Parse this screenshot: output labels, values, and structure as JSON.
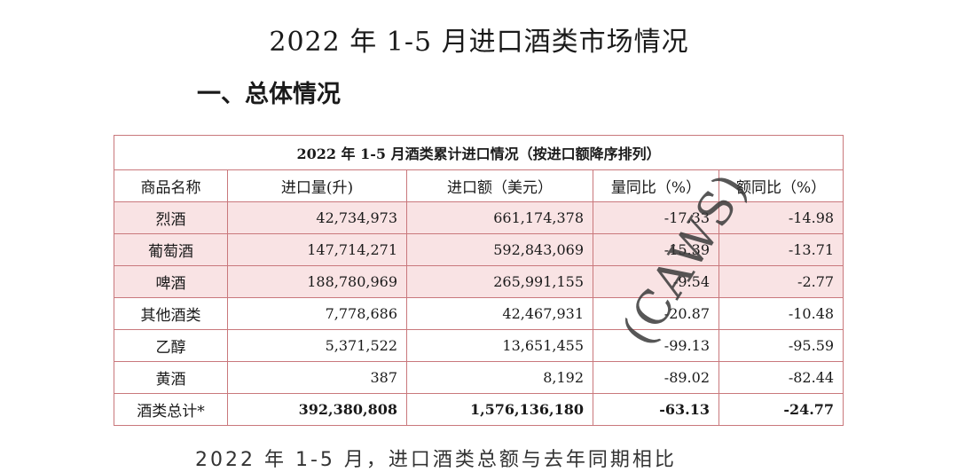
{
  "title": "2022 年 1-5 月进口酒类市场情况",
  "section": "一、总体情况",
  "table": {
    "caption": "2022 年 1-5 月酒类累计进口情况（按进口额降序排列）",
    "headers": [
      "商品名称",
      "进口量(升)",
      "进口额（美元）",
      "量同比（%）",
      "额同比（%）"
    ],
    "rows": [
      {
        "name": "烈酒",
        "volume": "42,734,973",
        "amount": "661,174,378",
        "vol_yoy": "-17.33",
        "amt_yoy": "-14.98"
      },
      {
        "name": "葡萄酒",
        "volume": "147,714,271",
        "amount": "592,843,069",
        "vol_yoy": "-15.39",
        "amt_yoy": "-13.71"
      },
      {
        "name": "啤酒",
        "volume": "188,780,969",
        "amount": "265,991,155",
        "vol_yoy": "-9.54",
        "amt_yoy": "-2.77"
      },
      {
        "name": "其他酒类",
        "volume": "7,778,686",
        "amount": "42,467,931",
        "vol_yoy": "-20.87",
        "amt_yoy": "-10.48"
      },
      {
        "name": "乙醇",
        "volume": "5,371,522",
        "amount": "13,651,455",
        "vol_yoy": "-99.13",
        "amt_yoy": "-95.59"
      },
      {
        "name": "黄酒",
        "volume": "387",
        "amount": "8,192",
        "vol_yoy": "-89.02",
        "amt_yoy": "-82.44"
      },
      {
        "name": "酒类总计*",
        "volume": "392,380,808",
        "amount": "1,576,136,180",
        "vol_yoy": "-63.13",
        "amt_yoy": "-24.77"
      }
    ]
  },
  "watermark": "(CAWS)",
  "bottom_text": "2022 年 1-5 月，进口酒类总额与去年同期相比"
}
